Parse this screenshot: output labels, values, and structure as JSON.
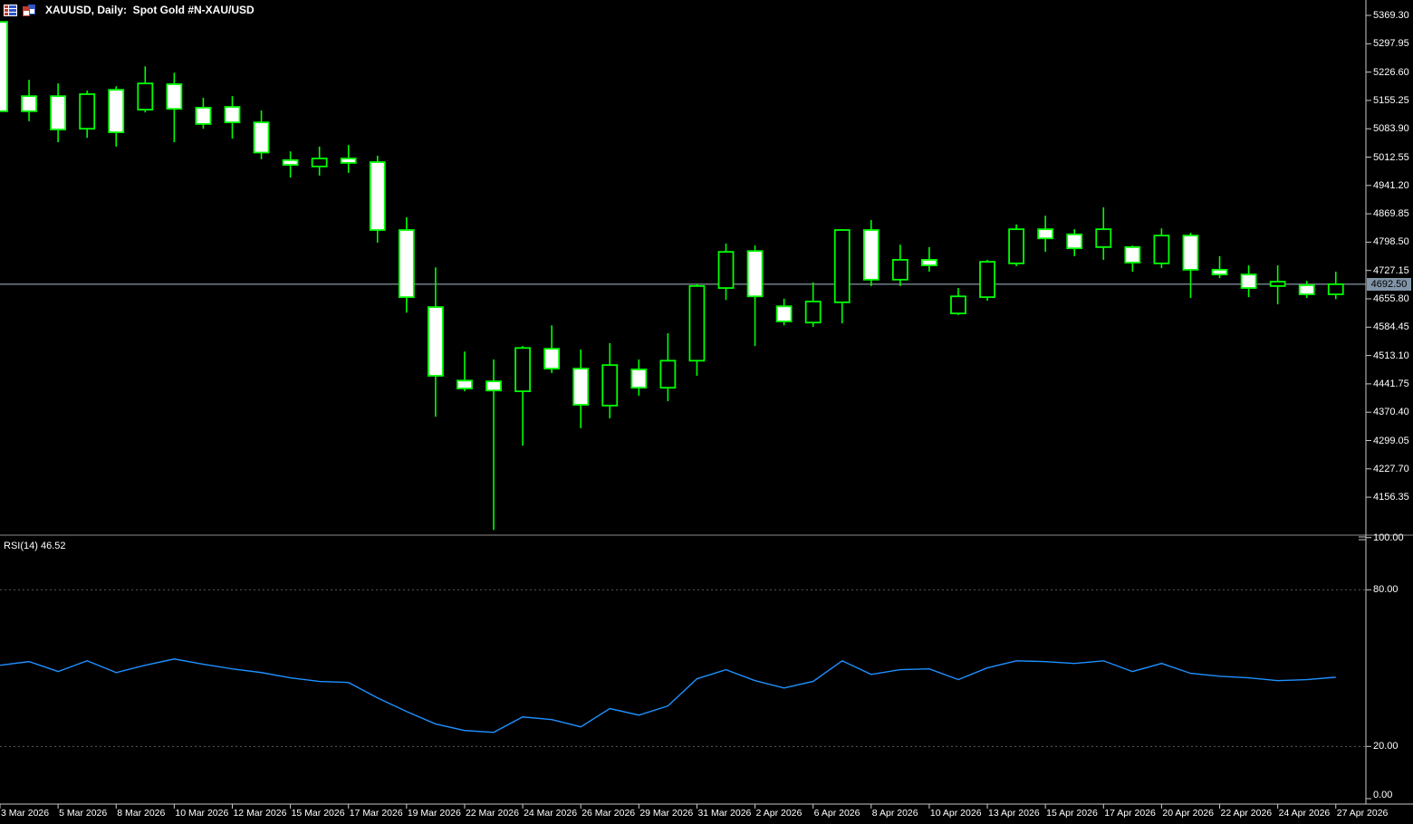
{
  "header": {
    "title": "XAUUSD, Daily:  Spot Gold #N-XAU/USD"
  },
  "icons": [
    {
      "name": "quotes-grid-icon"
    },
    {
      "name": "windows-icon"
    }
  ],
  "chart_data": {
    "type": "candlestick",
    "title": "XAUUSD, Daily:  Spot Gold #N-XAU/USD",
    "symbol": "XAUUSD",
    "timeframe": "Daily",
    "description": "Spot Gold #N-XAU/USD",
    "price_axis": {
      "ticks": [
        5369.3,
        5297.95,
        5226.6,
        5155.25,
        5083.9,
        5012.55,
        4941.2,
        4869.85,
        4798.5,
        4727.15,
        4655.8,
        4584.45,
        4513.1,
        4441.75,
        4370.4,
        4299.05,
        4227.7,
        4156.35
      ],
      "current_price_label": "4692.50",
      "current_price_value": 4692.5
    },
    "time_axis": {
      "labels": [
        "3 Mar 2026",
        "5 Mar 2026",
        "8 Mar 2026",
        "10 Mar 2026",
        "12 Mar 2026",
        "15 Mar 2026",
        "17 Mar 2026",
        "19 Mar 2026",
        "22 Mar 2026",
        "24 Mar 2026",
        "26 Mar 2026",
        "29 Mar 2026",
        "31 Mar 2026",
        "2 Apr 2026",
        "6 Apr 2026",
        "8 Apr 2026",
        "10 Apr 2026",
        "13 Apr 2026",
        "15 Apr 2026",
        "17 Apr 2026",
        "20 Apr 2026",
        "22 Apr 2026",
        "24 Apr 2026",
        "27 Apr 2026"
      ]
    },
    "candles_ohlc_format": "[open, high, low, close]",
    "candles": [
      [
        5353,
        5353,
        5128,
        5128
      ],
      [
        5166,
        5207,
        5103,
        5128
      ],
      [
        5166,
        5198,
        5050,
        5082
      ],
      [
        5084,
        5180,
        5061,
        5171
      ],
      [
        5182,
        5191,
        5039,
        5075
      ],
      [
        5132,
        5241,
        5125,
        5198
      ],
      [
        5196,
        5225,
        5050,
        5134
      ],
      [
        5137,
        5162,
        5084,
        5096
      ],
      [
        5139,
        5166,
        5059,
        5100
      ],
      [
        5100,
        5130,
        5007,
        5024
      ],
      [
        5005,
        5027,
        4961,
        4993
      ],
      [
        4989,
        5039,
        4966,
        5009
      ],
      [
        5009,
        5043,
        4973,
        4998
      ],
      [
        5000,
        5016,
        4797,
        4829
      ],
      [
        4829,
        4861,
        4621,
        4660
      ],
      [
        4635,
        4735,
        4359,
        4462
      ],
      [
        4450,
        4523,
        4423,
        4430
      ],
      [
        4448,
        4503,
        4074,
        4425
      ],
      [
        4423,
        4537,
        4286,
        4532
      ],
      [
        4530,
        4589,
        4469,
        4480
      ],
      [
        4480,
        4528,
        4330,
        4389
      ],
      [
        4387,
        4544,
        4355,
        4489
      ],
      [
        4478,
        4503,
        4412,
        4432
      ],
      [
        4432,
        4569,
        4398,
        4500
      ],
      [
        4500,
        4694,
        4462,
        4688
      ],
      [
        4683,
        4795,
        4653,
        4774
      ],
      [
        4776,
        4790,
        4537,
        4662
      ],
      [
        4637,
        4656,
        4589,
        4599
      ],
      [
        4596,
        4697,
        4585,
        4649
      ],
      [
        4647,
        4831,
        4594,
        4829
      ],
      [
        4829,
        4854,
        4688,
        4704
      ],
      [
        4704,
        4792,
        4688,
        4754
      ],
      [
        4754,
        4786,
        4724,
        4740
      ],
      [
        4619,
        4683,
        4615,
        4662
      ],
      [
        4660,
        4754,
        4651,
        4749
      ],
      [
        4745,
        4843,
        4738,
        4831
      ],
      [
        4831,
        4865,
        4774,
        4808
      ],
      [
        4818,
        4831,
        4763,
        4783
      ],
      [
        4786,
        4886,
        4754,
        4831
      ],
      [
        4786,
        4790,
        4724,
        4747
      ],
      [
        4745,
        4833,
        4733,
        4815
      ],
      [
        4815,
        4822,
        4658,
        4729
      ],
      [
        4729,
        4763,
        4708,
        4717
      ],
      [
        4717,
        4740,
        4660,
        4683
      ],
      [
        4688,
        4740,
        4642,
        4699
      ],
      [
        4690,
        4701,
        4658,
        4667
      ],
      [
        4667,
        4724,
        4655,
        4692.5
      ]
    ],
    "rsi": {
      "label": "RSI(14)",
      "value_label": "46.52",
      "period": 14,
      "levels": [
        80,
        20
      ],
      "axis_ticks": [
        100,
        80,
        20,
        0
      ],
      "values": [
        51.1,
        52.5,
        48.7,
        52.8,
        48.3,
        51.1,
        53.5,
        51.5,
        49.7,
        48.3,
        46.3,
        44.9,
        44.5,
        38.6,
        33.4,
        28.6,
        26.1,
        25.4,
        31.3,
        30.3,
        27.5,
        34.5,
        32.0,
        35.5,
        45.9,
        49.4,
        45.2,
        42.4,
        44.9,
        52.8,
        47.6,
        49.4,
        49.7,
        45.6,
        50.1,
        52.8,
        52.5,
        51.8,
        52.8,
        48.7,
        51.8,
        48.0,
        46.9,
        46.3,
        45.2,
        45.6,
        46.52
      ]
    },
    "colors": {
      "background": "#000000",
      "candle_outline": "#00FF00",
      "bear_fill": "#FFFFFF",
      "bull_fill": "#000000",
      "rsi_line": "#1E90FF",
      "price_line": "#A9BACB",
      "price_badge_bg": "#8294A8",
      "axis_text": "#FFFFFF",
      "axis_line": "#C8C8C8",
      "separator_line": "#8C8C8C",
      "level_dash": "#5A5A5A"
    }
  }
}
